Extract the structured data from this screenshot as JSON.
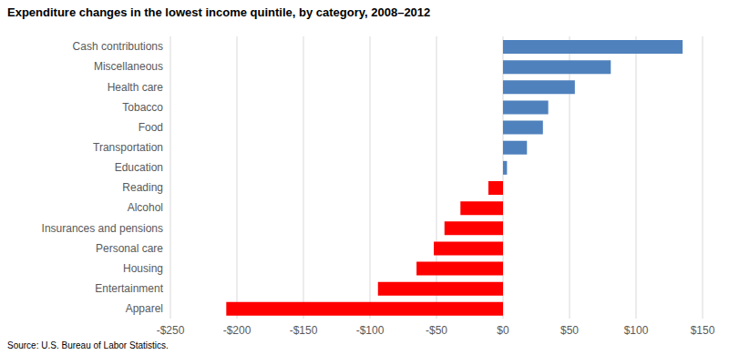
{
  "chart_data": {
    "type": "bar",
    "orientation": "horizontal",
    "title": "Expenditure changes in the lowest income quintile, by category, 2008–2012",
    "source": "Source: U.S. Bureau of Labor Statistics.",
    "categories": [
      "Cash contributions",
      "Miscellaneous",
      "Health care",
      "Tobacco",
      "Food",
      "Transportation",
      "Education",
      "Reading",
      "Alcohol",
      "Insurances and pensions",
      "Personal care",
      "Housing",
      "Entertainment",
      "Apparel"
    ],
    "values": [
      135,
      81,
      54,
      34,
      30,
      18,
      3,
      -11,
      -32,
      -44,
      -52,
      -65,
      -94,
      -208
    ],
    "colors": [
      "#4F81BD",
      "#4F81BD",
      "#4F81BD",
      "#4F81BD",
      "#4F81BD",
      "#4F81BD",
      "#4F81BD",
      "#FF0000",
      "#FF0000",
      "#FF0000",
      "#FF0000",
      "#FF0000",
      "#FF0000",
      "#FF0000"
    ],
    "xlim": [
      -250,
      150
    ],
    "xticks": [
      {
        "value": -250,
        "label": "-$250"
      },
      {
        "value": -200,
        "label": "-$200"
      },
      {
        "value": -150,
        "label": "-$150"
      },
      {
        "value": -100,
        "label": "-$100"
      },
      {
        "value": -50,
        "label": "-$50"
      },
      {
        "value": 0,
        "label": "$0"
      },
      {
        "value": 50,
        "label": "$50"
      },
      {
        "value": 100,
        "label": "$100"
      },
      {
        "value": 150,
        "label": "$150"
      }
    ],
    "grid": true
  }
}
